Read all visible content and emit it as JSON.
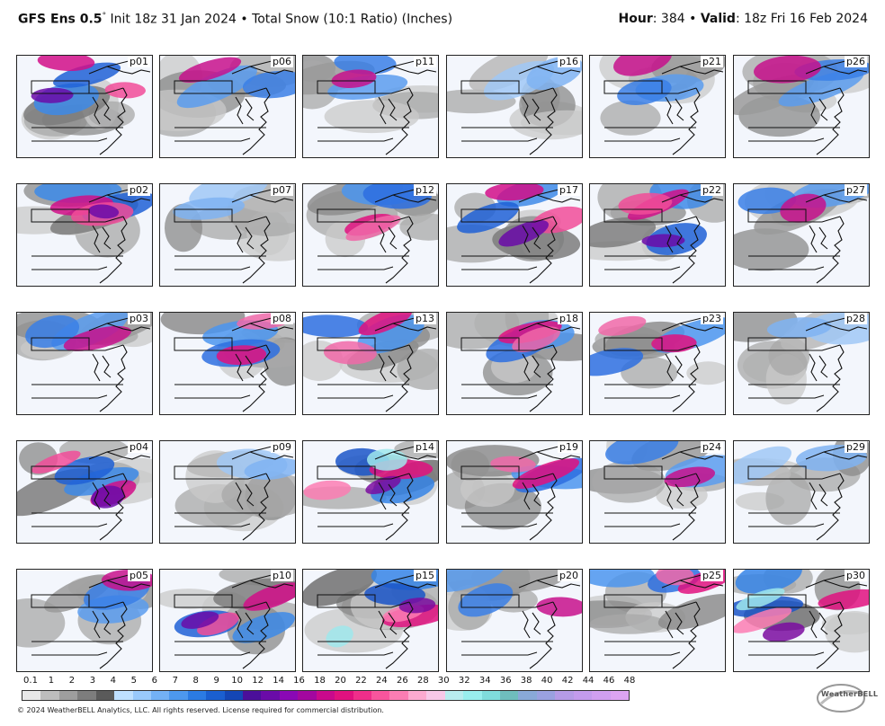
{
  "header": {
    "model": "GFS Ens 0.5",
    "init_text": "Init 18z 31 Jan 2024",
    "bullet": "•",
    "field_text": "Total Snow (10:1 Ratio) (Inches)",
    "hour_label": "Hour",
    "hour_value": ": 384",
    "valid_label": "Valid",
    "valid_value": ": 18z Fri 16 Feb 2024"
  },
  "members": [
    [
      "p01",
      "p06",
      "p11",
      "p16",
      "p21",
      "p26"
    ],
    [
      "p02",
      "p07",
      "p12",
      "p17",
      "p22",
      "p27"
    ],
    [
      "p03",
      "p08",
      "p13",
      "p18",
      "p23",
      "p28"
    ],
    [
      "p04",
      "p09",
      "p14",
      "p19",
      "p24",
      "p29"
    ],
    [
      "p05",
      "p10",
      "p15",
      "p20",
      "p25",
      "p30"
    ]
  ],
  "member_heaviness": [
    [
      3,
      1,
      1,
      0,
      1,
      1
    ],
    [
      3,
      0,
      2,
      3,
      3,
      1
    ],
    [
      1,
      2,
      2,
      2,
      2,
      0
    ],
    [
      3,
      0,
      4,
      2,
      1,
      0
    ],
    [
      1,
      3,
      4,
      1,
      2,
      4
    ]
  ],
  "colorbar": {
    "ticks": [
      "0.1",
      "1",
      "2",
      "3",
      "4",
      "5",
      "6",
      "7",
      "8",
      "9",
      "10",
      "12",
      "14",
      "16",
      "18",
      "20",
      "22",
      "24",
      "26",
      "28",
      "30",
      "32",
      "34",
      "36",
      "38",
      "40",
      "42",
      "44",
      "46",
      "48"
    ],
    "colors": [
      "#e8e8e8",
      "#bdbdbd",
      "#9e9e9e",
      "#7d7d7d",
      "#5a5a5a",
      "#bfe0ff",
      "#99c9fb",
      "#73b1f5",
      "#4d98ee",
      "#2b7be3",
      "#1a5fd0",
      "#1446b5",
      "#4b0f9a",
      "#6a0ba8",
      "#8a08b5",
      "#a3079f",
      "#c9098c",
      "#e0117f",
      "#ef2e8a",
      "#f8559d",
      "#fb7db3",
      "#fcaad0",
      "#f7c8e8",
      "#b8ecef",
      "#98eeee",
      "#7fdcdc",
      "#6fbdbd",
      "#89a9d8",
      "#9aa1e0",
      "#b59be6",
      "#c39bec",
      "#d09ff0",
      "#dca4f2"
    ]
  },
  "footer": "© 2024 WeatherBELL Analytics, LLC. All rights reserved. License required for commercial distribution.",
  "logo_text": "WeatherBELL"
}
